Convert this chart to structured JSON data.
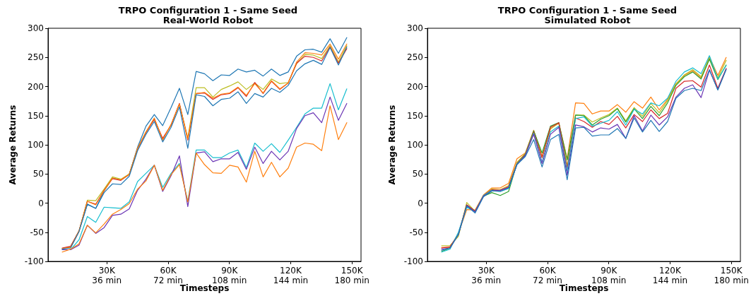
{
  "chart_data": [
    {
      "type": "line",
      "title": "TRPO Configuration 1 - Same Seed",
      "subtitle": "Real-World Robot",
      "xlabel": "Timesteps",
      "ylabel": "Average Returns",
      "x": [
        8192,
        12288,
        16384,
        20480,
        24576,
        28672,
        32768,
        36864,
        40960,
        45056,
        49152,
        53248,
        57344,
        61440,
        65536,
        69632,
        73728,
        77824,
        81920,
        86016,
        90112,
        94208,
        98304,
        102400,
        106496,
        110592,
        114688,
        118784,
        122880,
        126976,
        131072,
        135168,
        139264,
        143360,
        147456
      ],
      "xlim": [
        1229,
        154419
      ],
      "xticks": [
        {
          "value": 30000,
          "label": "30K"
        },
        {
          "value": 60000,
          "label": "60K"
        },
        {
          "value": 90000,
          "label": "90K"
        },
        {
          "value": 120000,
          "label": "120K"
        },
        {
          "value": 150000,
          "label": "150K"
        }
      ],
      "x2lim": [
        1.4748,
        185.3028
      ],
      "x2ticks": [
        {
          "value": 36,
          "label": "36 min"
        },
        {
          "value": 72,
          "label": "72 min"
        },
        {
          "value": 108,
          "label": "108 min"
        },
        {
          "value": 144,
          "label": "144 min"
        },
        {
          "value": 180,
          "label": "180 min"
        }
      ],
      "ylim": [
        -100,
        300
      ],
      "yticks": [
        -100,
        -50,
        0,
        50,
        100,
        150,
        200,
        250,
        300
      ],
      "grid": false,
      "marker": "none",
      "series": [
        {
          "color": "#1f77b4",
          "values": [
            -78,
            -75,
            -48,
            -2,
            -9,
            21,
            43,
            40,
            49,
            96,
            132,
            152,
            133,
            164,
            197,
            152,
            226,
            222,
            210,
            220,
            219,
            230,
            225,
            228,
            218,
            230,
            219,
            225,
            252,
            263,
            264,
            259,
            282,
            257,
            284
          ]
        },
        {
          "color": "#bcbd22",
          "values": [
            -78,
            -75,
            -48,
            5,
            4,
            24,
            45,
            41,
            50,
            94,
            122,
            144,
            110,
            134,
            170,
            112,
            198,
            198,
            182,
            195,
            201,
            208,
            195,
            206,
            195,
            213,
            205,
            207,
            239,
            255,
            254,
            248,
            270,
            242,
            270
          ]
        },
        {
          "color": "#d62728",
          "values": [
            -77,
            -74,
            -48,
            3,
            -2,
            22,
            42,
            39,
            49,
            93,
            121,
            144,
            111,
            134,
            171,
            108,
            188,
            189,
            178,
            186,
            188,
            198,
            183,
            207,
            188,
            209,
            195,
            206,
            240,
            252,
            250,
            244,
            268,
            240,
            265
          ]
        },
        {
          "color": "#ff7f0e",
          "values": [
            -78,
            -76,
            -48,
            3,
            -3,
            21,
            43,
            40,
            49,
            94,
            122,
            146,
            108,
            135,
            170,
            110,
            188,
            190,
            180,
            187,
            189,
            199,
            185,
            205,
            189,
            210,
            196,
            206,
            242,
            258,
            257,
            254,
            273,
            247,
            273
          ]
        },
        {
          "color": "#1f77b4",
          "values": [
            -79,
            -77,
            -49,
            -2,
            -9,
            18,
            33,
            32,
            46,
            90,
            118,
            140,
            105,
            130,
            165,
            94,
            186,
            183,
            167,
            178,
            180,
            191,
            171,
            188,
            182,
            197,
            190,
            202,
            227,
            239,
            245,
            238,
            267,
            237,
            268
          ]
        },
        {
          "color": "#17becf",
          "values": [
            -80,
            -80,
            -63,
            -23,
            -33,
            -7,
            -8,
            -9,
            2,
            37,
            51,
            65,
            27,
            51,
            68,
            3,
            91,
            91,
            78,
            78,
            86,
            91,
            61,
            103,
            89,
            102,
            87,
            108,
            130,
            153,
            163,
            163,
            205,
            160,
            196
          ]
        },
        {
          "color": "#6a34b4",
          "values": [
            -80,
            -80,
            -72,
            -38,
            -52,
            -42,
            -21,
            -19,
            -10,
            22,
            41,
            65,
            20,
            47,
            81,
            -6,
            86,
            88,
            71,
            76,
            76,
            87,
            58,
            96,
            68,
            89,
            74,
            89,
            128,
            150,
            155,
            138,
            182,
            142,
            171
          ]
        },
        {
          "color": "#ff7f0e",
          "values": [
            -84,
            -79,
            -70,
            -38,
            -51,
            -36,
            -19,
            -11,
            -1,
            24,
            38,
            65,
            22,
            49,
            66,
            2,
            86,
            66,
            52,
            51,
            65,
            62,
            36,
            89,
            45,
            70,
            45,
            60,
            96,
            103,
            101,
            90,
            167,
            109,
            138
          ]
        }
      ]
    },
    {
      "type": "line",
      "title": "TRPO Configuration 1 - Same Seed",
      "subtitle": "Simulated Robot",
      "xlabel": "Timesteps",
      "ylabel": "Average Returns",
      "x": [
        8192,
        12288,
        16384,
        20480,
        24576,
        28672,
        32768,
        36864,
        40960,
        45056,
        49152,
        53248,
        57344,
        61440,
        65536,
        69632,
        73728,
        77824,
        81920,
        86016,
        90112,
        94208,
        98304,
        102400,
        106496,
        110592,
        114688,
        118784,
        122880,
        126976,
        131072,
        135168,
        139264,
        143360,
        147456
      ],
      "xlim": [
        1229,
        154419
      ],
      "xticks": [
        {
          "value": 30000,
          "label": "30K"
        },
        {
          "value": 60000,
          "label": "60K"
        },
        {
          "value": 90000,
          "label": "90K"
        },
        {
          "value": 120000,
          "label": "120K"
        },
        {
          "value": 150000,
          "label": "150K"
        }
      ],
      "x2lim": [
        1.4748,
        185.3028
      ],
      "x2ticks": [
        {
          "value": 36,
          "label": "36 min"
        },
        {
          "value": 72,
          "label": "72 min"
        },
        {
          "value": 108,
          "label": "108 min"
        },
        {
          "value": 144,
          "label": "144 min"
        },
        {
          "value": 180,
          "label": "180 min"
        }
      ],
      "ylim": [
        -100,
        300
      ],
      "yticks": [
        -100,
        -50,
        0,
        50,
        100,
        150,
        200,
        250,
        300
      ],
      "grid": false,
      "marker": "none",
      "series": [
        {
          "color": "#ff7f0e",
          "values": [
            -76,
            -76,
            -52,
            -11,
            -12,
            14,
            26,
            26,
            34,
            76,
            86,
            125,
            80,
            128,
            137,
            76,
            172,
            171,
            153,
            158,
            158,
            169,
            156,
            174,
            163,
            182,
            160,
            178,
            205,
            219,
            227,
            215,
            251,
            219,
            250
          ]
        },
        {
          "color": "#bcbd22",
          "values": [
            -73,
            -73,
            -57,
            1,
            -14,
            13,
            24,
            23,
            30,
            70,
            85,
            123,
            78,
            127,
            138,
            64,
            151,
            151,
            139,
            146,
            152,
            163,
            141,
            164,
            149,
            171,
            155,
            176,
            204,
            220,
            229,
            217,
            249,
            215,
            245
          ]
        },
        {
          "color": "#2ca02c",
          "values": [
            -83,
            -77,
            -53,
            -3,
            -14,
            12,
            18,
            13,
            20,
            68,
            84,
            124,
            86,
            132,
            138,
            74,
            151,
            150,
            134,
            144,
            150,
            162,
            139,
            162,
            145,
            166,
            150,
            172,
            202,
            217,
            225,
            213,
            247,
            212,
            237
          ]
        },
        {
          "color": "#d62728",
          "values": [
            -77,
            -75,
            -53,
            -3,
            -14,
            13,
            23,
            22,
            28,
            68,
            83,
            122,
            78,
            130,
            138,
            60,
            146,
            140,
            130,
            140,
            135,
            149,
            129,
            152,
            140,
            160,
            145,
            154,
            197,
            209,
            210,
            199,
            237,
            197,
            231
          ]
        },
        {
          "color": "#17becf",
          "values": [
            -84,
            -79,
            -50,
            -7,
            -15,
            13,
            22,
            20,
            25,
            67,
            82,
            120,
            70,
            122,
            132,
            55,
            145,
            148,
            132,
            137,
            142,
            157,
            134,
            161,
            153,
            172,
            167,
            180,
            209,
            225,
            232,
            222,
            253,
            213,
            236
          ]
        },
        {
          "color": "#6a34b4",
          "values": [
            -79,
            -77,
            -54,
            -4,
            -15,
            12,
            21,
            22,
            27,
            66,
            82,
            118,
            68,
            118,
            130,
            48,
            134,
            131,
            122,
            129,
            127,
            135,
            111,
            150,
            124,
            151,
            134,
            148,
            182,
            197,
            203,
            181,
            228,
            195,
            230
          ]
        },
        {
          "color": "#1f77b4",
          "values": [
            -81,
            -77,
            -54,
            -5,
            -17,
            11,
            21,
            20,
            26,
            66,
            80,
            109,
            62,
            109,
            118,
            40,
            129,
            130,
            115,
            117,
            117,
            128,
            111,
            146,
            122,
            142,
            123,
            140,
            180,
            193,
            197,
            193,
            229,
            194,
            229
          ]
        }
      ]
    }
  ]
}
